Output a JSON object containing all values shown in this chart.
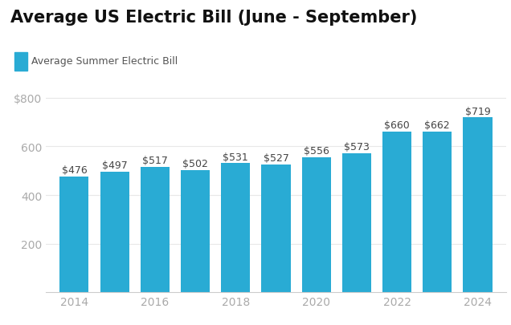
{
  "title": "Average US Electric Bill (June - September)",
  "legend_label": "Average Summer Electric Bill",
  "years": [
    2014,
    2015,
    2016,
    2017,
    2018,
    2019,
    2020,
    2021,
    2022,
    2023,
    2024
  ],
  "values": [
    476,
    497,
    517,
    502,
    531,
    527,
    556,
    573,
    660,
    662,
    719
  ],
  "bar_color": "#29ABD4",
  "title_fontsize": 15,
  "label_fontsize": 9,
  "tick_label_color": "#aaaaaa",
  "background_color": "#ffffff",
  "ylim": [
    0,
    830
  ],
  "yticks": [
    200,
    400,
    600,
    800
  ],
  "ytick_labels": [
    "200",
    "400",
    "600",
    "$800"
  ],
  "xtick_years": [
    2014,
    2016,
    2018,
    2020,
    2022,
    2024
  ]
}
